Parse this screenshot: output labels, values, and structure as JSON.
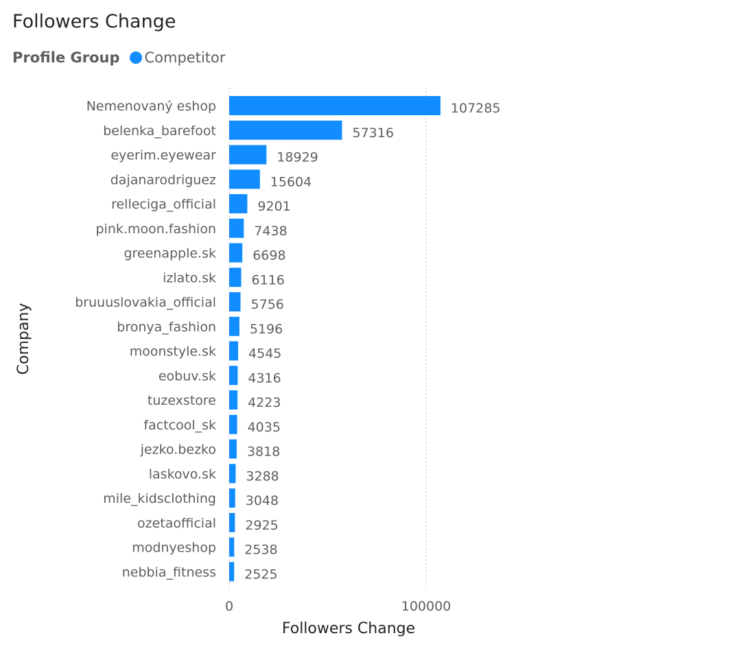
{
  "chart_data": {
    "type": "bar",
    "orientation": "horizontal",
    "title": "Followers Change",
    "legend": {
      "title": "Profile Group",
      "entries": [
        "Competitor"
      ],
      "placement": "top-left"
    },
    "series": [
      {
        "name": "Competitor",
        "color": "#118dff"
      }
    ],
    "categories": [
      "Nemenovaný eshop",
      "belenka_barefoot",
      "eyerim.eyewear",
      "dajanarodriguez",
      "relleciga_official",
      "pink.moon.fashion",
      "greenapple.sk",
      "izlato.sk",
      "bruuuslovakia_official",
      "bronya_fashion",
      "moonstyle.sk",
      "eobuv.sk",
      "tuzexstore",
      "factcool_sk",
      "jezko.bezko",
      "laskovo.sk",
      "mile_kidsclothing",
      "ozetaofficial",
      "modnyeshop",
      "nebbia_fitness"
    ],
    "values": [
      107285,
      57316,
      18929,
      15604,
      9201,
      7438,
      6698,
      6116,
      5756,
      5196,
      4545,
      4316,
      4223,
      4035,
      3818,
      3288,
      3048,
      2925,
      2538,
      2525
    ],
    "xlabel": "Followers Change",
    "ylabel": "Company",
    "xlim": [
      0,
      250000
    ],
    "xticks": [
      "0",
      "100000"
    ],
    "gridlines": "vertical-dotted"
  }
}
